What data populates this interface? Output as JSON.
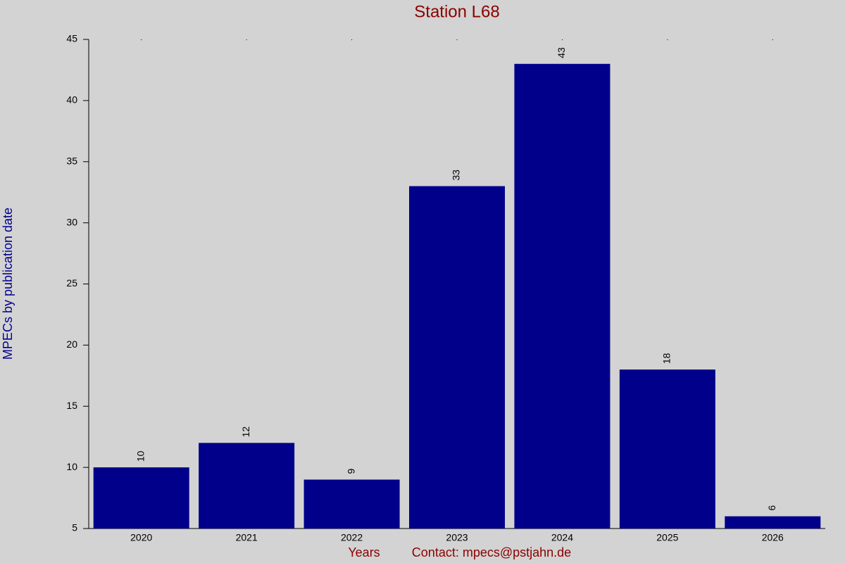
{
  "chart_data": {
    "type": "bar",
    "title": "Station L68",
    "y_label": "MPECs by publication date",
    "x_label": "Years",
    "contact": "Contact: mpecs@pstjahn.de",
    "categories": [
      "2020",
      "2021",
      "2022",
      "2023",
      "2024",
      "2025",
      "2026"
    ],
    "values": [
      10,
      12,
      9,
      33,
      43,
      18,
      6
    ],
    "color": "#00008b",
    "ylim": [
      5,
      45
    ],
    "yticks": [
      5,
      10,
      15,
      20,
      25,
      30,
      35,
      40,
      45
    ],
    "grid": false
  }
}
